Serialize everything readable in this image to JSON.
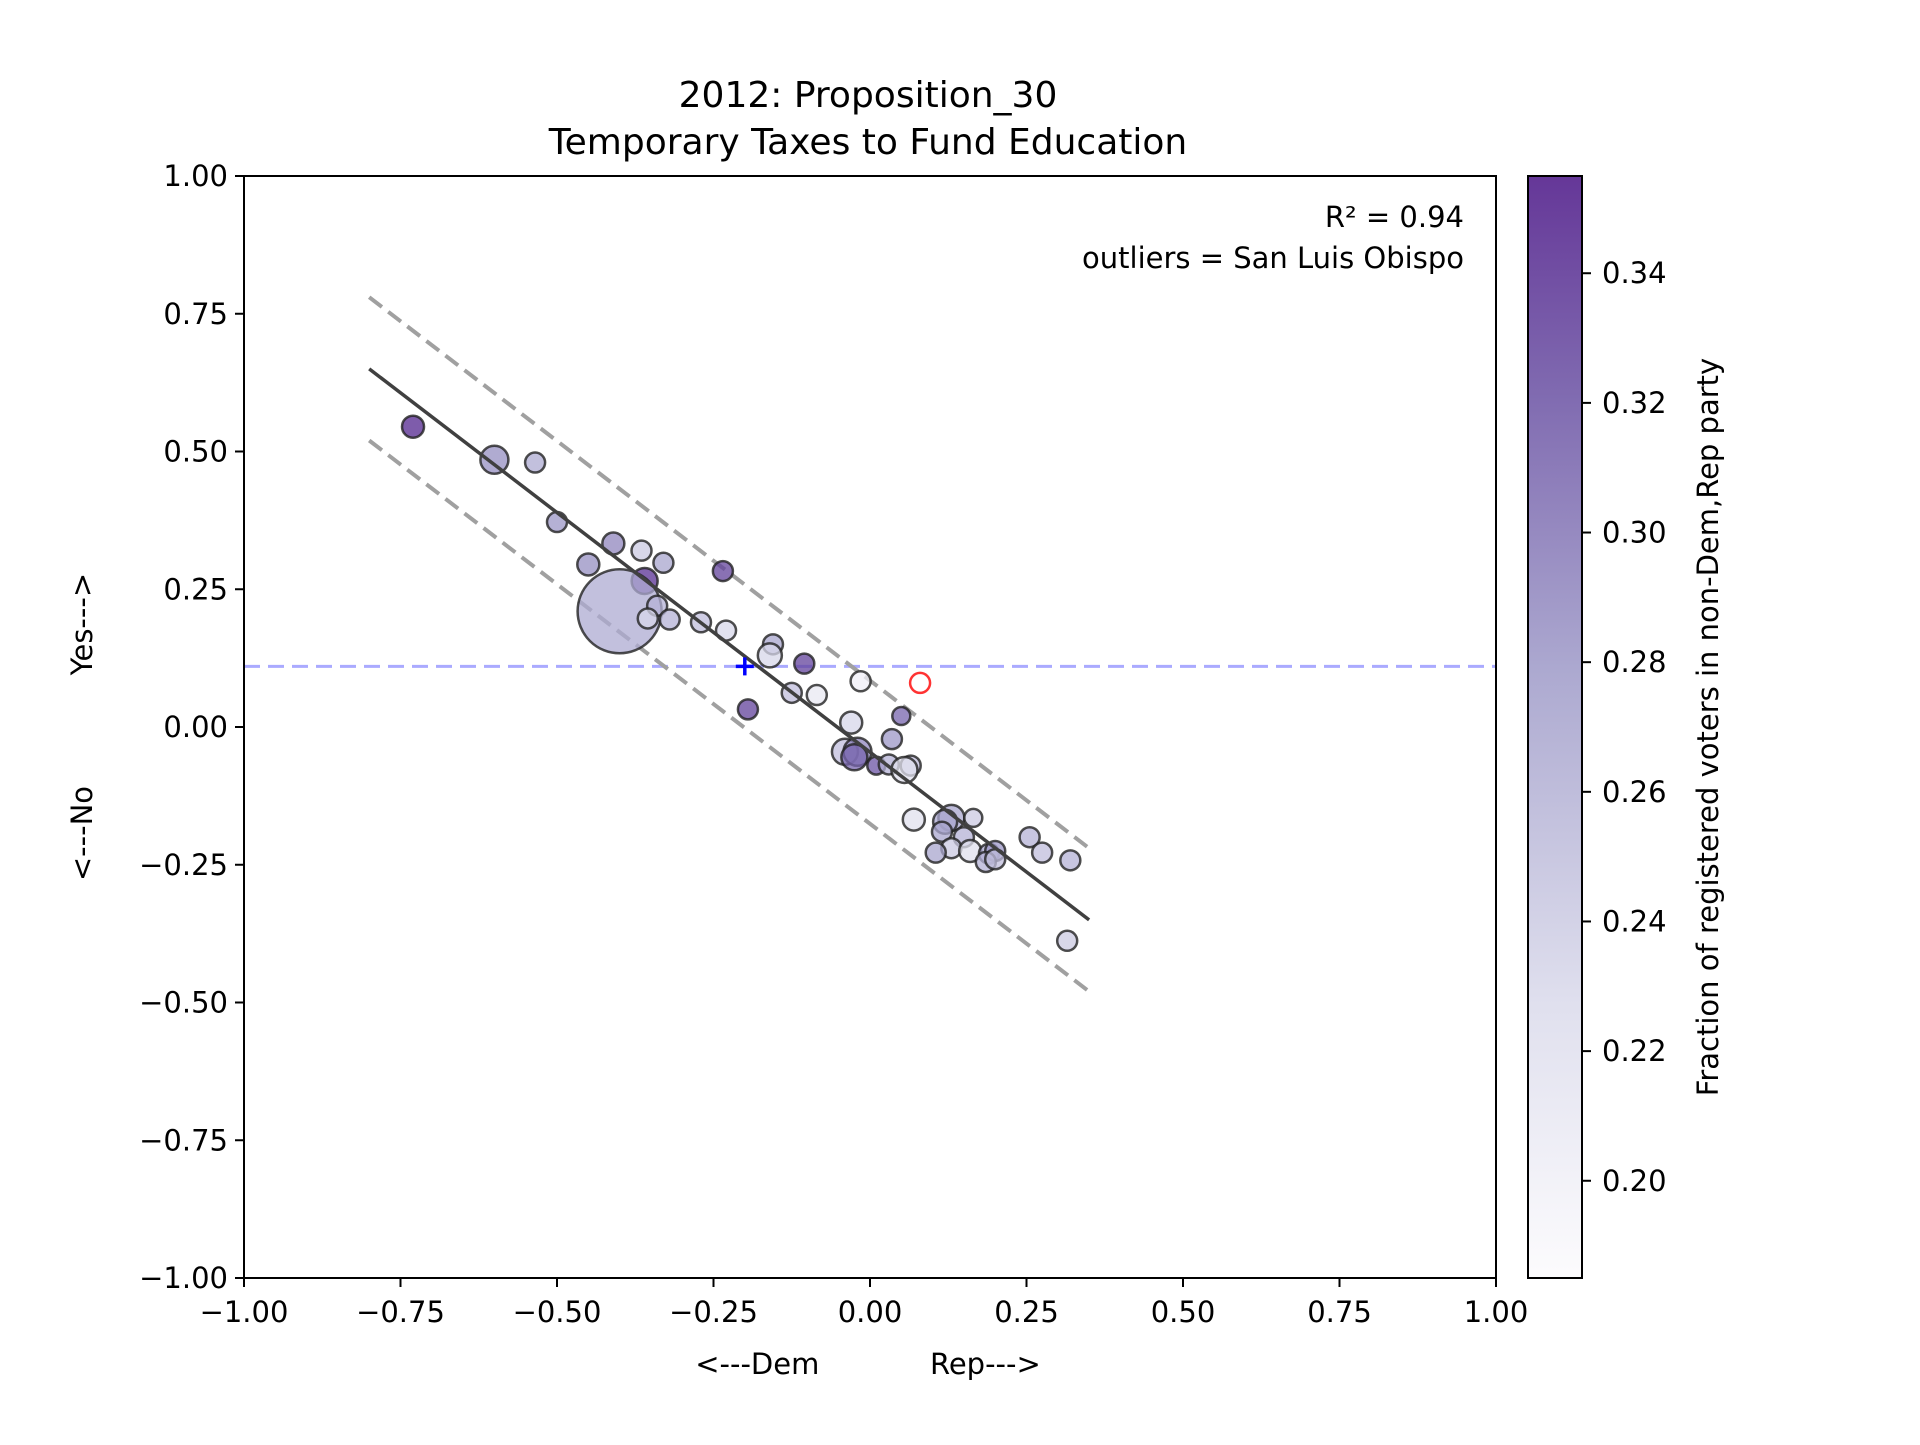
{
  "chart_data": {
    "type": "scatter",
    "title_line1": "2012: Proposition_30",
    "title_line2": "Temporary Taxes to Fund Education",
    "xlabel": "<---Dem            Rep--->",
    "ylabel": "<---No            Yes--->",
    "xlim": [
      -1.0,
      1.0
    ],
    "ylim": [
      -1.0,
      1.0
    ],
    "x_ticks": [
      "−1.00",
      "−0.75",
      "−0.50",
      "−0.25",
      "0.00",
      "0.25",
      "0.50",
      "0.75",
      "1.00"
    ],
    "y_ticks": [
      "−1.00",
      "−0.75",
      "−0.50",
      "−0.25",
      "0.00",
      "0.25",
      "0.50",
      "0.75",
      "1.00"
    ],
    "grid": false,
    "annotations": {
      "r2": "R² = 0.94",
      "outliers": "outliers = San Luis Obispo"
    },
    "colorbar": {
      "label": "Fraction of registered voters in non-Dem,Rep party",
      "range": [
        0.185,
        0.355
      ],
      "ticks": [
        "0.20",
        "0.22",
        "0.24",
        "0.26",
        "0.28",
        "0.30",
        "0.32",
        "0.34"
      ],
      "colormap": [
        "#fcfbfd",
        "#dadaeb",
        "#9e9ac8",
        "#6a51a3",
        "#3f007d"
      ]
    },
    "fit_line": {
      "x": [
        -0.8,
        0.35
      ],
      "y": [
        0.65,
        -0.35
      ],
      "band_offset": 0.13,
      "color": "#404040",
      "band_color": "#a0a0a0"
    },
    "statewide_result_y": 0.11,
    "statewide_marker": {
      "x": -0.2,
      "y": 0.11,
      "color": "#0000ff"
    },
    "outlier_point": {
      "x": 0.08,
      "y": 0.08,
      "color": "#ff3333"
    },
    "points": [
      {
        "x": -0.73,
        "y": 0.545,
        "r": 11,
        "c": 0.345
      },
      {
        "x": -0.6,
        "y": 0.485,
        "r": 14,
        "c": 0.285
      },
      {
        "x": -0.535,
        "y": 0.48,
        "r": 10,
        "c": 0.265
      },
      {
        "x": -0.5,
        "y": 0.372,
        "r": 10,
        "c": 0.28
      },
      {
        "x": -0.41,
        "y": 0.333,
        "r": 11,
        "c": 0.29
      },
      {
        "x": -0.45,
        "y": 0.295,
        "r": 11,
        "c": 0.285
      },
      {
        "x": -0.365,
        "y": 0.32,
        "r": 10,
        "c": 0.24
      },
      {
        "x": -0.33,
        "y": 0.298,
        "r": 10,
        "c": 0.27
      },
      {
        "x": -0.36,
        "y": 0.265,
        "r": 13,
        "c": 0.34
      },
      {
        "x": -0.235,
        "y": 0.283,
        "r": 10,
        "c": 0.33
      },
      {
        "x": -0.4,
        "y": 0.21,
        "r": 42,
        "c": 0.265
      },
      {
        "x": -0.34,
        "y": 0.22,
        "r": 10,
        "c": 0.26
      },
      {
        "x": -0.355,
        "y": 0.197,
        "r": 10,
        "c": 0.23
      },
      {
        "x": -0.32,
        "y": 0.195,
        "r": 10,
        "c": 0.26
      },
      {
        "x": -0.27,
        "y": 0.19,
        "r": 10,
        "c": 0.25
      },
      {
        "x": -0.23,
        "y": 0.175,
        "r": 10,
        "c": 0.23
      },
      {
        "x": -0.155,
        "y": 0.15,
        "r": 10,
        "c": 0.27
      },
      {
        "x": -0.16,
        "y": 0.13,
        "r": 12,
        "c": 0.23
      },
      {
        "x": -0.105,
        "y": 0.115,
        "r": 10,
        "c": 0.33
      },
      {
        "x": -0.015,
        "y": 0.083,
        "r": 10,
        "c": 0.2
      },
      {
        "x": -0.085,
        "y": 0.058,
        "r": 10,
        "c": 0.21
      },
      {
        "x": -0.125,
        "y": 0.062,
        "r": 10,
        "c": 0.25
      },
      {
        "x": -0.195,
        "y": 0.032,
        "r": 10,
        "c": 0.33
      },
      {
        "x": 0.05,
        "y": 0.02,
        "r": 9,
        "c": 0.31
      },
      {
        "x": -0.03,
        "y": 0.008,
        "r": 11,
        "c": 0.23
      },
      {
        "x": 0.035,
        "y": -0.022,
        "r": 10,
        "c": 0.28
      },
      {
        "x": -0.04,
        "y": -0.045,
        "r": 13,
        "c": 0.25
      },
      {
        "x": -0.02,
        "y": -0.045,
        "r": 14,
        "c": 0.29
      },
      {
        "x": -0.025,
        "y": -0.055,
        "r": 13,
        "c": 0.31
      },
      {
        "x": 0.01,
        "y": -0.07,
        "r": 9,
        "c": 0.32
      },
      {
        "x": 0.03,
        "y": -0.068,
        "r": 10,
        "c": 0.26
      },
      {
        "x": 0.065,
        "y": -0.07,
        "r": 10,
        "c": 0.25
      },
      {
        "x": 0.055,
        "y": -0.078,
        "r": 13,
        "c": 0.22
      },
      {
        "x": 0.07,
        "y": -0.168,
        "r": 11,
        "c": 0.22
      },
      {
        "x": 0.13,
        "y": -0.165,
        "r": 13,
        "c": 0.27
      },
      {
        "x": 0.12,
        "y": -0.172,
        "r": 12,
        "c": 0.27
      },
      {
        "x": 0.165,
        "y": -0.165,
        "r": 9,
        "c": 0.24
      },
      {
        "x": 0.115,
        "y": -0.19,
        "r": 10,
        "c": 0.27
      },
      {
        "x": 0.15,
        "y": -0.2,
        "r": 10,
        "c": 0.26
      },
      {
        "x": 0.13,
        "y": -0.22,
        "r": 10,
        "c": 0.24
      },
      {
        "x": 0.105,
        "y": -0.228,
        "r": 10,
        "c": 0.27
      },
      {
        "x": 0.16,
        "y": -0.225,
        "r": 11,
        "c": 0.22
      },
      {
        "x": 0.19,
        "y": -0.23,
        "r": 10,
        "c": 0.27
      },
      {
        "x": 0.2,
        "y": -0.225,
        "r": 10,
        "c": 0.28
      },
      {
        "x": 0.185,
        "y": -0.245,
        "r": 10,
        "c": 0.26
      },
      {
        "x": 0.2,
        "y": -0.24,
        "r": 10,
        "c": 0.25
      },
      {
        "x": 0.255,
        "y": -0.2,
        "r": 10,
        "c": 0.26
      },
      {
        "x": 0.275,
        "y": -0.228,
        "r": 10,
        "c": 0.25
      },
      {
        "x": 0.32,
        "y": -0.242,
        "r": 10,
        "c": 0.26
      },
      {
        "x": 0.315,
        "y": -0.388,
        "r": 10,
        "c": 0.24
      }
    ]
  }
}
